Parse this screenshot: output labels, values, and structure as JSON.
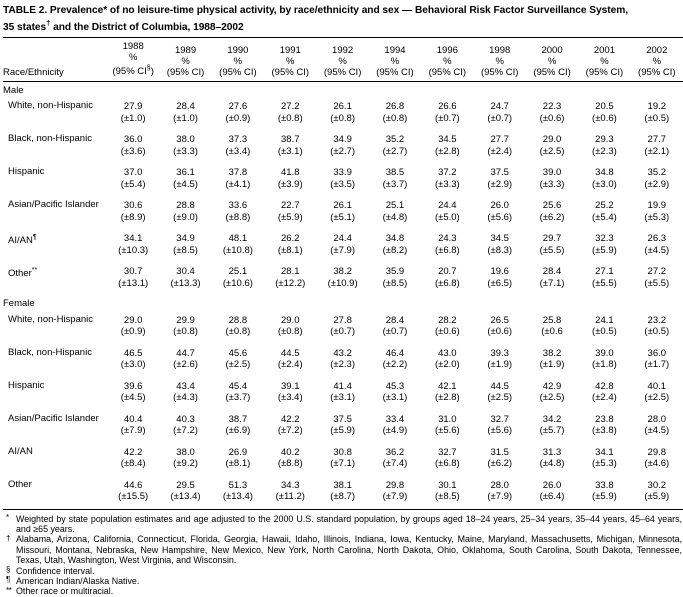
{
  "title": {
    "line1": "TABLE 2. Prevalence* of no leisure-time physical activity, by race/ethnicity and sex — Behavioral Risk Factor Surveillance System,",
    "line2_pre": "35 states",
    "line2_sup": "†",
    "line2_post": " and the District of Columbia, 1988–2002"
  },
  "table": {
    "race_header": "Race/Ethnicity",
    "percent_label": "%",
    "columns": [
      {
        "year": "1988",
        "ci_pre": "(95% CI",
        "ci_sup": "§",
        "ci_post": ")"
      },
      {
        "year": "1989",
        "ci_pre": "(95% CI)",
        "ci_sup": "",
        "ci_post": ""
      },
      {
        "year": "1990",
        "ci_pre": "(95% CI)",
        "ci_sup": "",
        "ci_post": ""
      },
      {
        "year": "1991",
        "ci_pre": "(95% CI)",
        "ci_sup": "",
        "ci_post": ""
      },
      {
        "year": "1992",
        "ci_pre": "(95% CI)",
        "ci_sup": "",
        "ci_post": ""
      },
      {
        "year": "1994",
        "ci_pre": "(95% CI)",
        "ci_sup": "",
        "ci_post": ""
      },
      {
        "year": "1996",
        "ci_pre": "(95% CI)",
        "ci_sup": "",
        "ci_post": ""
      },
      {
        "year": "1998",
        "ci_pre": "(95% CI)",
        "ci_sup": "",
        "ci_post": ""
      },
      {
        "year": "2000",
        "ci_pre": "(95% CI)",
        "ci_sup": "",
        "ci_post": ""
      },
      {
        "year": "2001",
        "ci_pre": "(95% CI)",
        "ci_sup": "",
        "ci_post": ""
      },
      {
        "year": "2002",
        "ci_pre": "(95% CI)",
        "ci_sup": "",
        "ci_post": ""
      }
    ],
    "sections": [
      {
        "label": "Male",
        "rows": [
          {
            "label": "White, non-Hispanic",
            "label_sup": "",
            "values": [
              "27.9",
              "28.4",
              "27.6",
              "27.2",
              "26.1",
              "26.8",
              "26.6",
              "24.7",
              "22.3",
              "20.5",
              "19.2"
            ],
            "cis": [
              "(±1.0)",
              "(±1.0)",
              "(±0.9)",
              "(±0.8)",
              "(±0.8)",
              "(±0.8)",
              "(±0.7)",
              "(±0.7)",
              "(±0.6)",
              "(±0.6)",
              "(±0.5)"
            ]
          },
          {
            "label": "Black, non-Hispanic",
            "label_sup": "",
            "values": [
              "36.0",
              "38.0",
              "37.3",
              "38.7",
              "34.9",
              "35.2",
              "34.5",
              "27.7",
              "29.0",
              "29.3",
              "27.7"
            ],
            "cis": [
              "(±3.6)",
              "(±3.3)",
              "(±3.4)",
              "(±3.1)",
              "(±2.7)",
              "(±2.7)",
              "(±2.8)",
              "(±2.4)",
              "(±2.5)",
              "(±2.3)",
              "(±2.1)"
            ]
          },
          {
            "label": "Hispanic",
            "label_sup": "",
            "values": [
              "37.0",
              "36.1",
              "37.8",
              "41.8",
              "33.9",
              "38.5",
              "37.2",
              "37.5",
              "39.0",
              "34.8",
              "35.2"
            ],
            "cis": [
              "(±5.4)",
              "(±4.5)",
              "(±4.1)",
              "(±3.9)",
              "(±3.5)",
              "(±3.7)",
              "(±3.3)",
              "(±2.9)",
              "(±3.3)",
              "(±3.0)",
              "(±2.9)"
            ]
          },
          {
            "label": "Asian/Pacific Islander",
            "label_sup": "",
            "values": [
              "30.6",
              "28.8",
              "33.6",
              "22.7",
              "26.1",
              "25.1",
              "24.4",
              "26.0",
              "25.6",
              "25.2",
              "19.9"
            ],
            "cis": [
              "(±8.9)",
              "(±9.0)",
              "(±8.8)",
              "(±5.9)",
              "(±5.1)",
              "(±4.8)",
              "(±5.0)",
              "(±5.6)",
              "(±6.2)",
              "(±5.4)",
              "(±5.3)"
            ]
          },
          {
            "label": "AI/AN",
            "label_sup": "¶",
            "values": [
              "34.1",
              "34.9",
              "48.1",
              "26.2",
              "24.4",
              "34.8",
              "24.3",
              "34.5",
              "29.7",
              "32.3",
              "26.3"
            ],
            "cis": [
              "(±10.3)",
              "(±8.5)",
              "(±10.8)",
              "(±8.1)",
              "(±7.9)",
              "(±8.2)",
              "(±6.8)",
              "(±8.3)",
              "(±5.5)",
              "(±5.9)",
              "(±4.5)"
            ]
          },
          {
            "label": "Other",
            "label_sup": "**",
            "values": [
              "30.7",
              "30.4",
              "25.1",
              "28.1",
              "38.2",
              "35.9",
              "20.7",
              "19.6",
              "28.4",
              "27.1",
              "27.2"
            ],
            "cis": [
              "(±13.1)",
              "(±13.3)",
              "(±10.6)",
              "(±12.2)",
              "(±10.9)",
              "(±8.5)",
              "(±6.8)",
              "(±6.5)",
              "(±7.1)",
              "(±5.5)",
              "(±5.5)"
            ]
          }
        ]
      },
      {
        "label": "Female",
        "rows": [
          {
            "label": "White, non-Hispanic",
            "label_sup": "",
            "values": [
              "29.0",
              "29.9",
              "28.8",
              "29.0",
              "27.8",
              "28.4",
              "28.2",
              "26.5",
              "25.8",
              "24.1",
              "23.2"
            ],
            "cis": [
              "(±0.9)",
              "(±0.8)",
              "(±0.8)",
              "(±0.8)",
              "(±0.7)",
              "(±0.7)",
              "(±0.6)",
              "(±0.6)",
              "(±0.6",
              "(±0.5)",
              "(±0.5)"
            ]
          },
          {
            "label": "Black, non-Hispanic",
            "label_sup": "",
            "values": [
              "46.5",
              "44.7",
              "45.6",
              "44.5",
              "43.2",
              "46.4",
              "43.0",
              "39.3",
              "38.2",
              "39.0",
              "36.0"
            ],
            "cis": [
              "(±3.0)",
              "(±2.6)",
              "(±2.5)",
              "(±2.4)",
              "(±2.3)",
              "(±2.2)",
              "(±2.0)",
              "(±1.9)",
              "(±1.9)",
              "(±1.8)",
              "(±1.7)"
            ]
          },
          {
            "label": "Hispanic",
            "label_sup": "",
            "values": [
              "39.6",
              "43.4",
              "45.4",
              "39.1",
              "41.4",
              "45.3",
              "42.1",
              "44.5",
              "42.9",
              "42.8",
              "40.1"
            ],
            "cis": [
              "(±4.5)",
              "(±4.3)",
              "(±3.7)",
              "(±3.4)",
              "(±3.1)",
              "(±3.1)",
              "(±2.8)",
              "(±2.5)",
              "(±2.5)",
              "(±2.4)",
              "(±2.5)"
            ]
          },
          {
            "label": "Asian/Pacific Islander",
            "label_sup": "",
            "values": [
              "40.4",
              "40.3",
              "38.7",
              "42.2",
              "37.5",
              "33.4",
              "31.0",
              "32.7",
              "34.2",
              "23.8",
              "28.0"
            ],
            "cis": [
              "(±7.9)",
              "(±7.2)",
              "(±6.9)",
              "(±7.2)",
              "(±5.9)",
              "(±4.9)",
              "(±5.6)",
              "(±5.6)",
              "(±5.7)",
              "(±3.8)",
              "(±4.5)"
            ]
          },
          {
            "label": "AI/AN",
            "label_sup": "",
            "values": [
              "42.2",
              "38.0",
              "26.9",
              "40.2",
              "30.8",
              "36.2",
              "32.7",
              "31.5",
              "31.3",
              "34.1",
              "29.8"
            ],
            "cis": [
              "(±8.4)",
              "(±9.2)",
              "(±8.1)",
              "(±8.8)",
              "(±7.1)",
              "(±7.4)",
              "(±6.8)",
              "(±6.2)",
              "(±4.8)",
              "(±5.3)",
              "(±4.6)"
            ]
          },
          {
            "label": "Other",
            "label_sup": "",
            "values": [
              "44.6",
              "29.5",
              "51.3",
              "34.3",
              "38.1",
              "29.8",
              "30.1",
              "28.0",
              "26.0",
              "33.8",
              "30.2"
            ],
            "cis": [
              "(±15.5)",
              "(±13.4)",
              "(±13.4)",
              "(±11.2)",
              "(±8.7)",
              "(±7.9)",
              "(±8.5)",
              "(±7.9)",
              "(±6.4)",
              "(±5.9)",
              "(±5.9)"
            ]
          }
        ]
      }
    ]
  },
  "footnotes": [
    {
      "marker": "*",
      "text": "Weighted by state population estimates and age adjusted to the 2000 U.S. standard population, by groups aged 18–24 years, 25–34 years, 35–44 years, 45–64 years, and ≥65 years."
    },
    {
      "marker": "†",
      "text": "Alabama, Arizona, California, Connecticut, Florida, Georgia, Hawaii, Idaho, Illinois, Indiana, Iowa, Kentucky, Maine, Maryland, Massachusetts, Michigan, Minnesota, Missouri, Montana, Nebraska, New Hampshire, New Mexico, New York, North Carolina, North Dakota, Ohio, Oklahoma, South Carolina, South Dakota, Tennessee, Texas, Utah, Washington, West Virginia, and Wisconsin."
    },
    {
      "marker": "§",
      "text": "Confidence interval."
    },
    {
      "marker": "¶",
      "text": "American Indian/Alaska Native."
    },
    {
      "marker": "**",
      "text": "Other race or multiracial."
    }
  ]
}
